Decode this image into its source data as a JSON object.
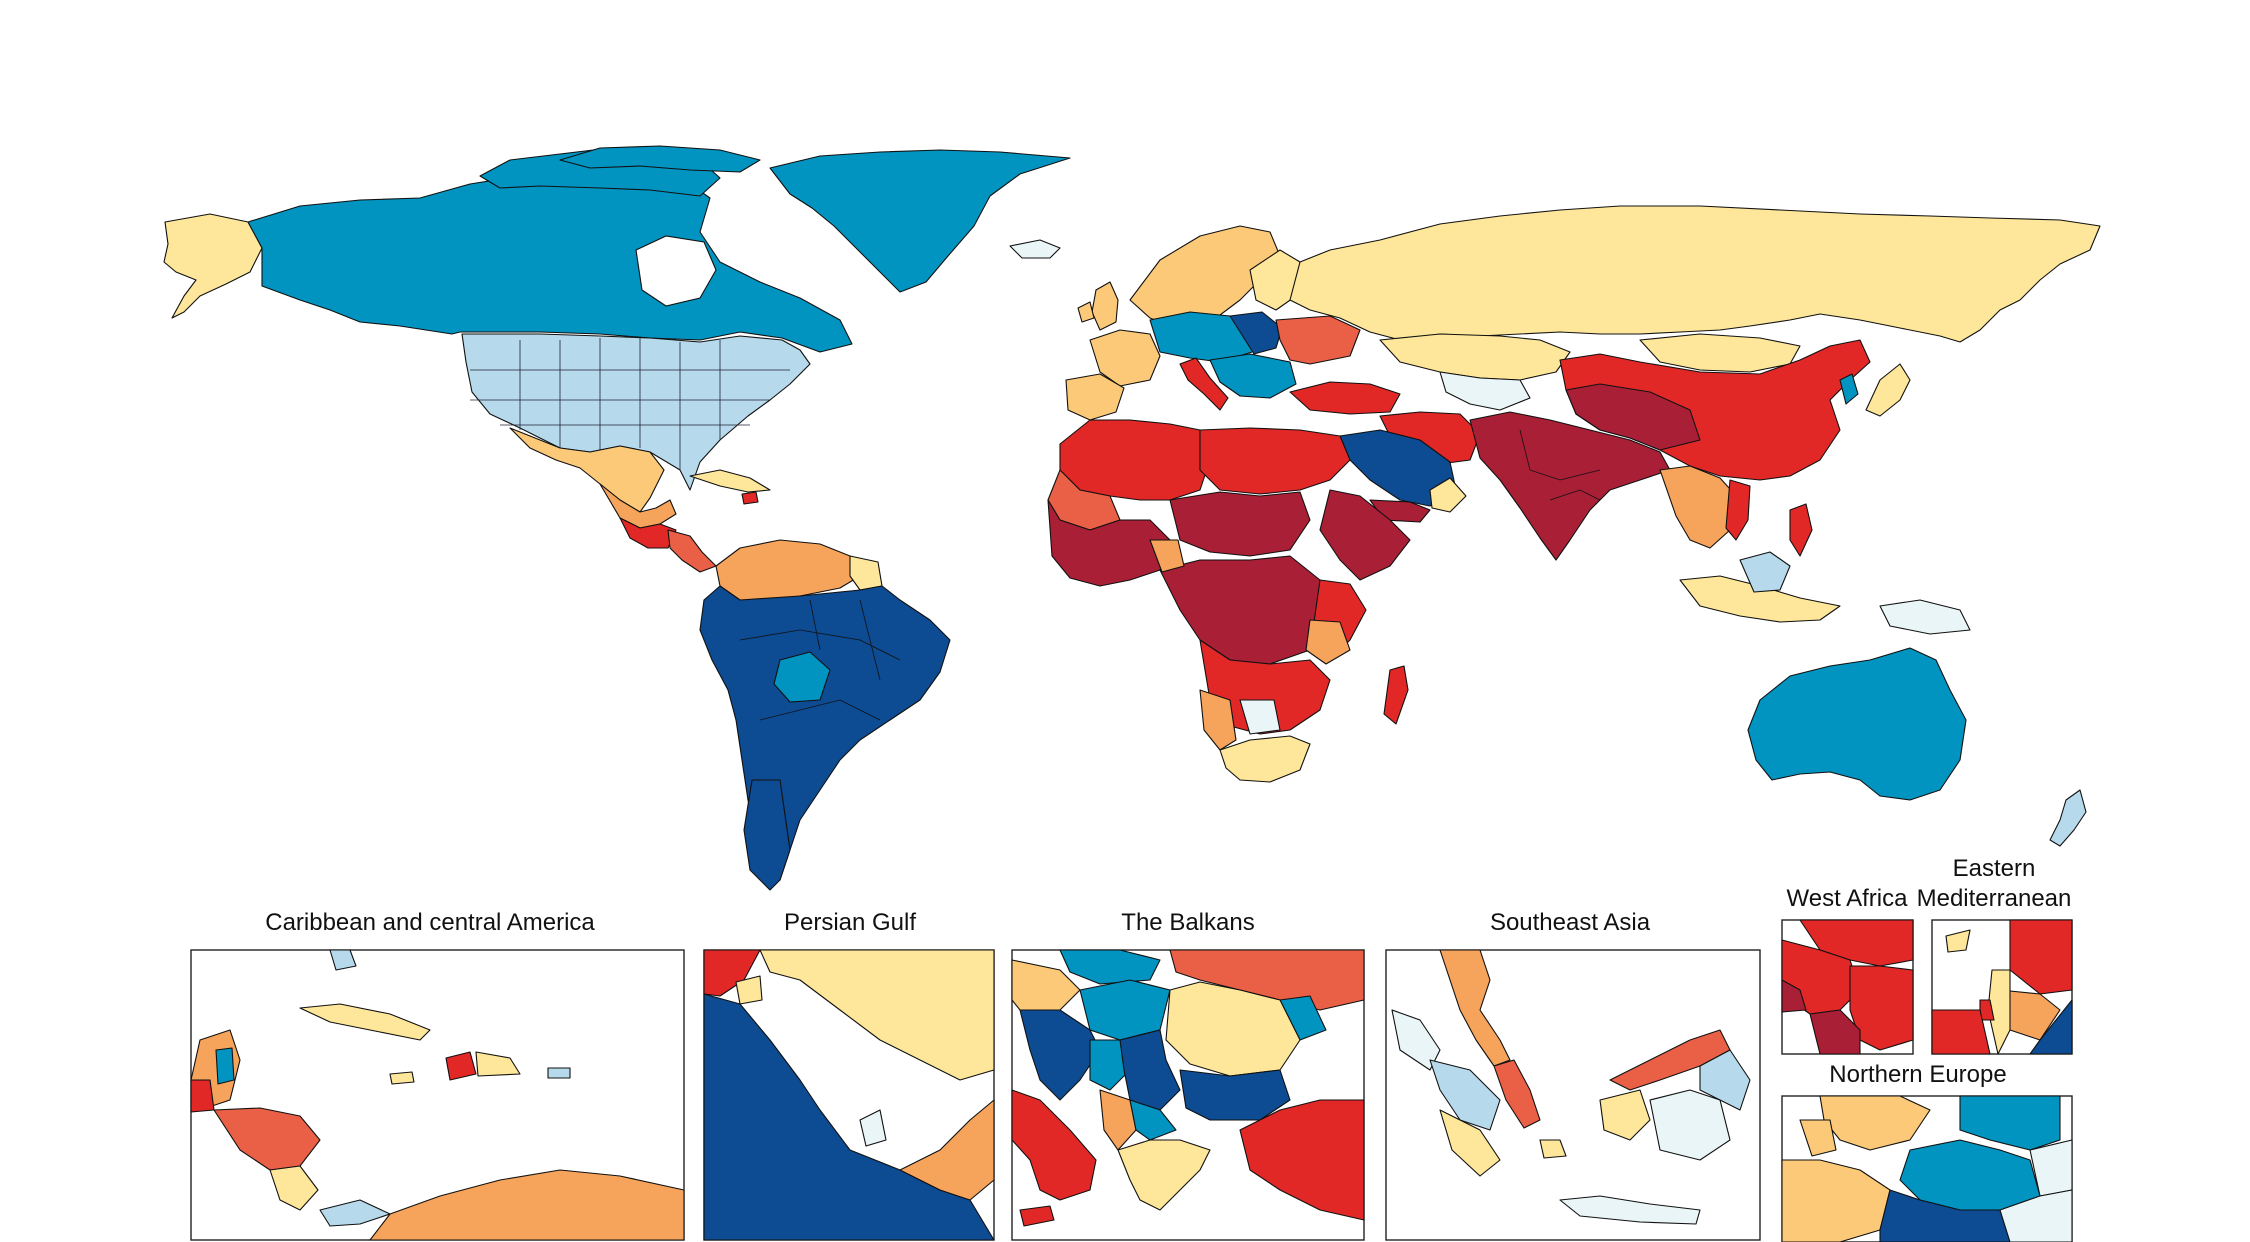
{
  "colors": {
    "darkest_red": "#a91f36",
    "red": "#e22827",
    "orange_red": "#ea6046",
    "orange": "#f6a35b",
    "light_orange": "#fcc979",
    "pale_yellow": "#fee79a",
    "pale_blue": "#e9f5f7",
    "light_blue": "#b6daec",
    "blue": "#0194c1",
    "dark_blue": "#0d4b93"
  },
  "insets": [
    {
      "title": "Caribbean and central America"
    },
    {
      "title": "Persian Gulf"
    },
    {
      "title": "The Balkans"
    },
    {
      "title": "Southeast Asia"
    },
    {
      "title": "West Africa"
    },
    {
      "title": "Eastern"
    },
    {
      "title": "Mediterranean"
    },
    {
      "title": "Northern Europe"
    }
  ]
}
